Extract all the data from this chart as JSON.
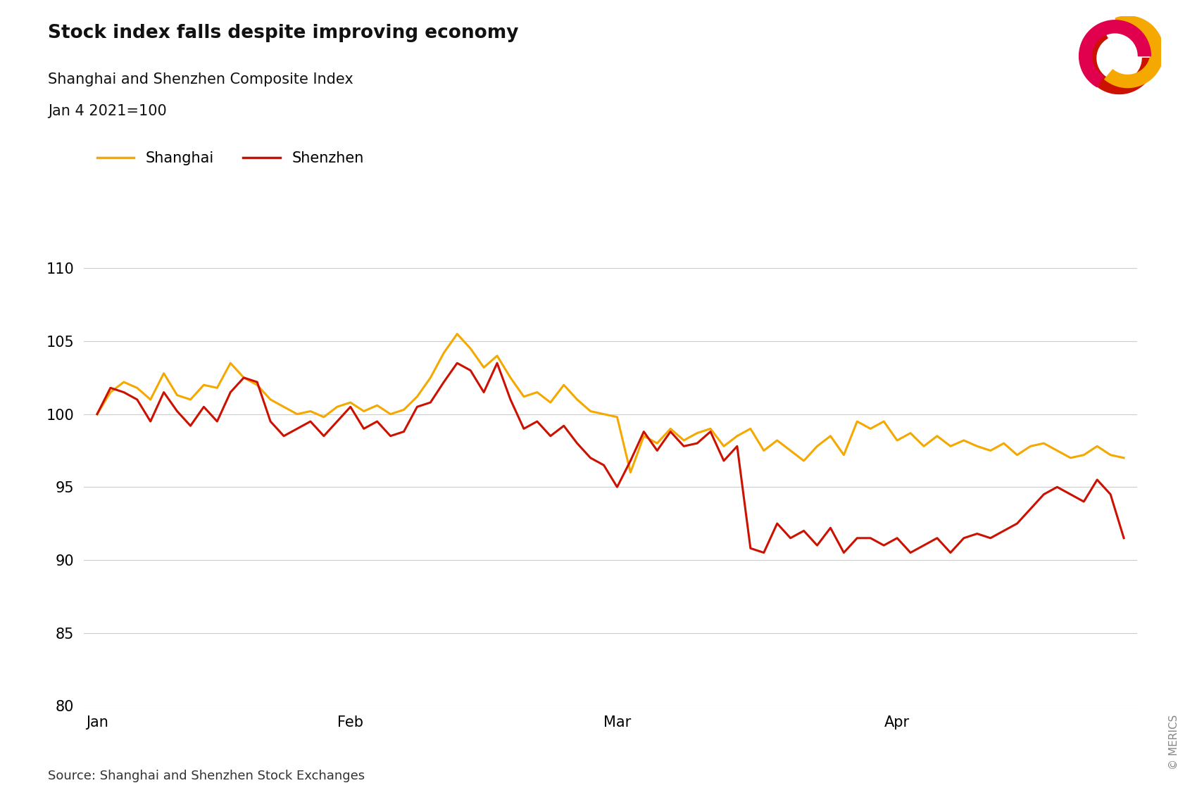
{
  "title": "Stock index falls despite improving economy",
  "subtitle1": "Shanghai and Shenzhen Composite Index",
  "subtitle2": "Jan 4 2021=100",
  "source": "Source: Shanghai and Shenzhen Stock Exchanges",
  "copyright": "© MERICS",
  "shanghai_color": "#F5A800",
  "shenzhen_color": "#CC1100",
  "background_color": "#FFFFFF",
  "ylim": [
    80,
    113
  ],
  "yticks": [
    80,
    85,
    90,
    95,
    100,
    105,
    110
  ],
  "x_tick_labels": [
    "Jan",
    "Feb",
    "Mar",
    "Apr"
  ],
  "x_tick_positions": [
    0,
    19,
    39,
    60
  ],
  "shanghai": [
    100.0,
    101.5,
    102.2,
    101.8,
    101.0,
    102.8,
    101.3,
    101.0,
    102.0,
    101.8,
    103.5,
    102.5,
    102.0,
    101.0,
    100.5,
    100.0,
    100.2,
    99.8,
    100.5,
    100.8,
    100.2,
    100.6,
    100.0,
    100.3,
    101.2,
    102.5,
    104.2,
    105.5,
    104.5,
    103.2,
    104.0,
    102.5,
    101.2,
    101.5,
    100.8,
    102.0,
    101.0,
    100.2,
    100.0,
    99.8,
    96.0,
    98.5,
    98.0,
    99.0,
    98.2,
    98.7,
    99.0,
    97.8,
    98.5,
    99.0,
    97.5,
    98.2,
    97.5,
    96.8,
    97.8,
    98.5,
    97.2,
    99.5,
    99.0,
    99.5,
    98.2,
    98.7,
    97.8,
    98.5,
    97.8,
    98.2,
    97.8,
    97.5,
    98.0,
    97.2,
    97.8,
    98.0,
    97.5,
    97.0,
    97.2,
    97.8,
    97.2,
    97.0
  ],
  "shenzhen": [
    100.0,
    101.8,
    101.5,
    101.0,
    99.5,
    101.5,
    100.2,
    99.2,
    100.5,
    99.5,
    101.5,
    102.5,
    102.2,
    99.5,
    98.5,
    99.0,
    99.5,
    98.5,
    99.5,
    100.5,
    99.0,
    99.5,
    98.5,
    98.8,
    100.5,
    100.8,
    102.2,
    103.5,
    103.0,
    101.5,
    103.5,
    101.0,
    99.0,
    99.5,
    98.5,
    99.2,
    98.0,
    97.0,
    96.5,
    95.0,
    96.8,
    98.8,
    97.5,
    98.8,
    97.8,
    98.0,
    98.8,
    96.8,
    97.8,
    90.8,
    90.5,
    92.5,
    91.5,
    92.0,
    91.0,
    92.2,
    90.5,
    91.5,
    91.5,
    91.0,
    91.5,
    90.5,
    91.0,
    91.5,
    90.5,
    91.5,
    91.8,
    91.5,
    92.0,
    92.5,
    93.5,
    94.5,
    95.0,
    94.5,
    94.0,
    95.5,
    94.5,
    91.5
  ]
}
